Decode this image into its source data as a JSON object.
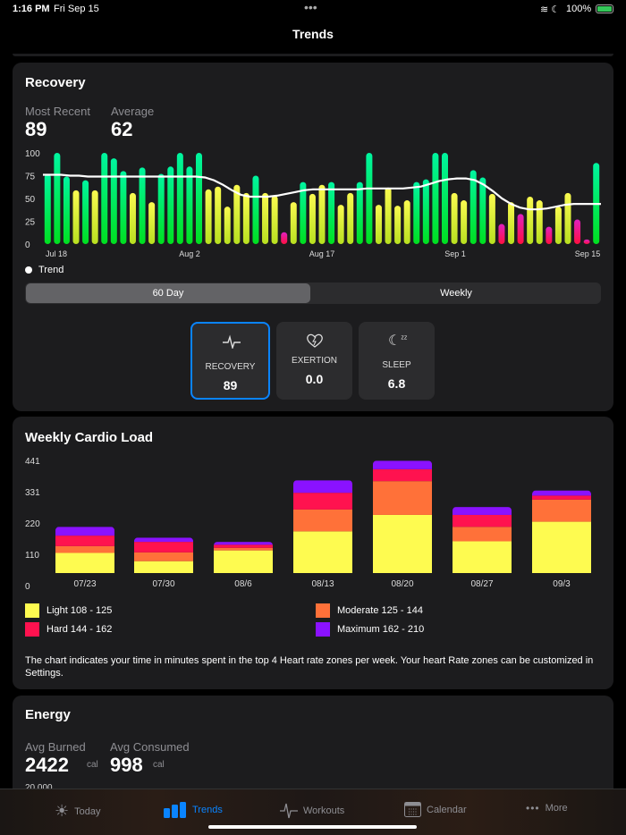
{
  "status": {
    "time": "1:16 PM",
    "date": "Fri Sep 15",
    "battery": "100%"
  },
  "nav": {
    "title": "Trends"
  },
  "recovery": {
    "title": "Recovery",
    "most_recent_label": "Most Recent",
    "most_recent": "89",
    "average_label": "Average",
    "average": "62",
    "legend": "Trend",
    "segments": [
      "60 Day",
      "Weekly"
    ],
    "selected_segment": "60 Day",
    "tiles": [
      {
        "label": "RECOVERY",
        "value": "89",
        "icon": "heartbeat-icon",
        "selected": true
      },
      {
        "label": "EXERTION",
        "value": "0.0",
        "icon": "heart-bolt-icon",
        "selected": false
      },
      {
        "label": "SLEEP",
        "value": "6.8",
        "icon": "moon-zzz-icon",
        "selected": false
      }
    ]
  },
  "chart_data": [
    {
      "type": "bar",
      "title": "Recovery",
      "yticks": [
        "0",
        "25",
        "50",
        "75",
        "100"
      ],
      "ylim": [
        0,
        100
      ],
      "xticks": [
        "Jul 18",
        "Aug 2",
        "Aug 17",
        "Sep 1",
        "Sep 15"
      ],
      "values": [
        77,
        100,
        74,
        59,
        70,
        59,
        100,
        94,
        80,
        56,
        84,
        46,
        77,
        85,
        100,
        85,
        100,
        60,
        63,
        41,
        65,
        56,
        75,
        56,
        53,
        13,
        46,
        68,
        55,
        65,
        68,
        43,
        56,
        68,
        100,
        43,
        62,
        42,
        48,
        68,
        71,
        100,
        100,
        56,
        48,
        81,
        73,
        55,
        22,
        46,
        33,
        52,
        48,
        19,
        41,
        56,
        27,
        5,
        89
      ],
      "trend": [
        76,
        76,
        76,
        75,
        75,
        74,
        74,
        74,
        74,
        74,
        74,
        74,
        74,
        74,
        74,
        74,
        74,
        74,
        73,
        70,
        65,
        59,
        54,
        52,
        52,
        52,
        53,
        55,
        57,
        59,
        60,
        60,
        60,
        60,
        60,
        60,
        61,
        61,
        61,
        61,
        61,
        62,
        63,
        66,
        69,
        71,
        72,
        72,
        70,
        65,
        58,
        50,
        44,
        40,
        38,
        38,
        39,
        41,
        43,
        44,
        44,
        44,
        44
      ],
      "colors": {
        "high": "#00f078",
        "mid": "#f6f63a",
        "low": "#ff1f6a"
      }
    },
    {
      "type": "bar",
      "stacked": true,
      "title": "Weekly Cardio Load",
      "yticks": [
        "0",
        "110",
        "220",
        "331",
        "441"
      ],
      "ylim": [
        0,
        441
      ],
      "categories": [
        "07/23",
        "07/30",
        "08/6",
        "08/13",
        "08/20",
        "08/27",
        "09/3"
      ],
      "series": [
        {
          "name": "Light 108 - 125",
          "color": "#fefb50",
          "values": [
            115,
            86,
            124,
            191,
            249,
            156,
            225
          ]
        },
        {
          "name": "Moderate 125 - 144",
          "color": "#ff7139",
          "values": [
            24,
            31,
            9,
            77,
            119,
            51,
            78
          ]
        },
        {
          "name": "Hard 144 - 162",
          "color": "#ff124f",
          "values": [
            37,
            37,
            11,
            59,
            42,
            42,
            14
          ]
        },
        {
          "name": "Maximum 162 - 210",
          "color": "#8a12ff",
          "values": [
            31,
            15,
            10,
            44,
            30,
            28,
            18
          ]
        }
      ]
    }
  ],
  "cardio": {
    "title": "Weekly Cardio Load",
    "note": "The chart indicates your time in minutes spent in the top 4 Heart rate zones per week.  Your heart Rate zones can be customized in Settings."
  },
  "energy": {
    "title": "Energy",
    "burned_label": "Avg Burned",
    "burned": "2422",
    "consumed_label": "Avg Consumed",
    "consumed": "998",
    "unit": "cal",
    "axis_top": "20,000"
  },
  "tabs": [
    {
      "label": "Today",
      "icon": "sun-icon"
    },
    {
      "label": "Trends",
      "icon": "bar-chart-icon",
      "active": true
    },
    {
      "label": "Workouts",
      "icon": "heartbeat-icon"
    },
    {
      "label": "Calendar",
      "icon": "calendar-icon"
    },
    {
      "label": "More",
      "icon": "more-icon"
    }
  ],
  "accent": "#0a84ff"
}
